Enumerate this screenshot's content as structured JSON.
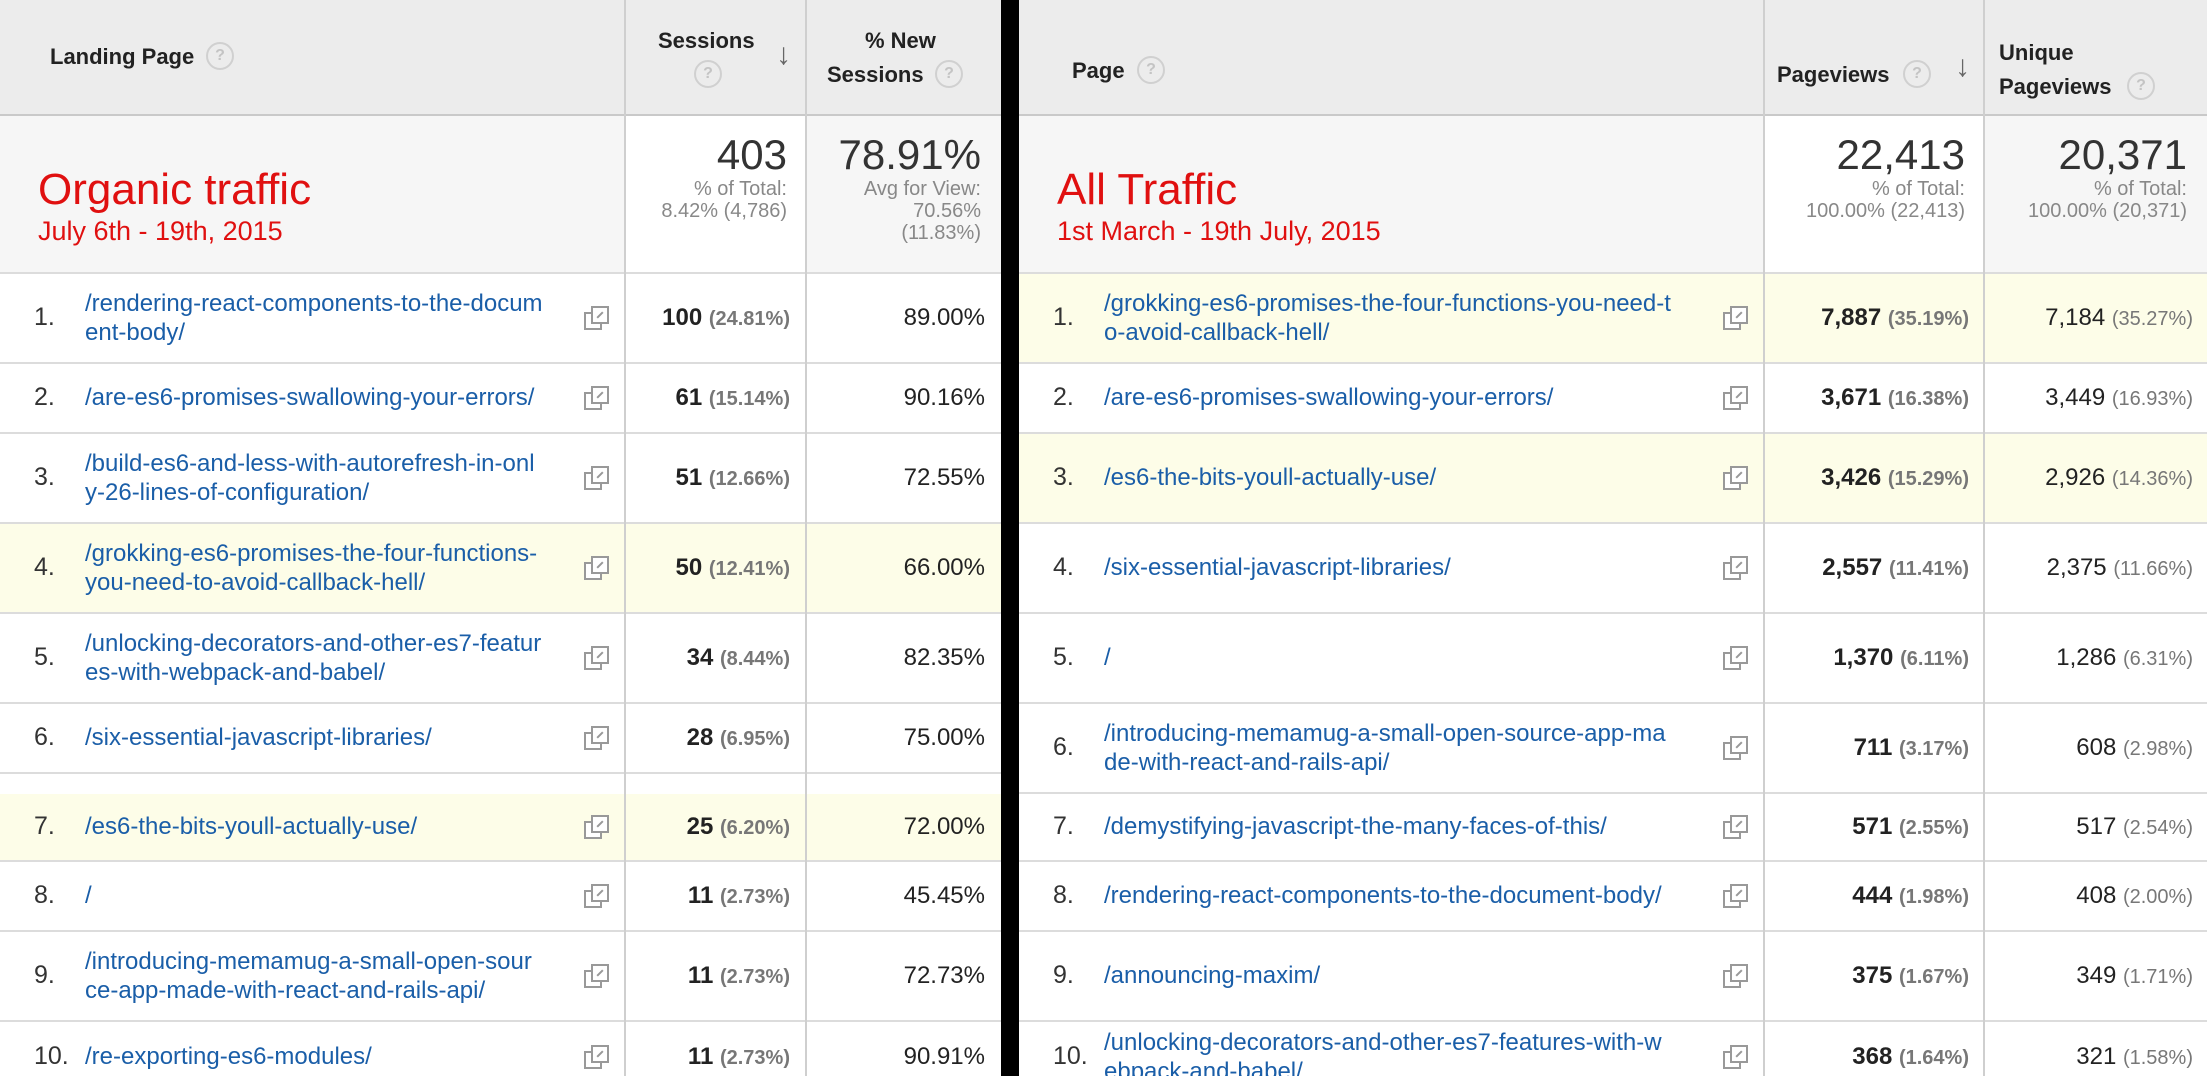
{
  "left": {
    "headers": {
      "landing_page": "Landing Page",
      "sessions": "Sessions",
      "new_sessions_line1": "% New",
      "new_sessions_line2": "Sessions",
      "help": "?",
      "sort_arrow": "↓"
    },
    "summary": {
      "title": "Organic traffic",
      "subtitle": "July 6th - 19th, 2015",
      "sessions_total": "403",
      "sessions_note1": "% of Total:",
      "sessions_note2": "8.42% (4,786)",
      "new_total": "78.91%",
      "new_note1": "Avg for View:",
      "new_note2": "70.56%",
      "new_note3": "(11.83%)"
    },
    "rows": [
      {
        "n": "1.",
        "line1": "/rendering-react-components-to-the-docum",
        "line2": "ent-body/",
        "sessions": "100",
        "pct": "(24.81%)",
        "new": "89.00%",
        "hl": false
      },
      {
        "n": "2.",
        "line1": "/are-es6-promises-swallowing-your-errors/",
        "line2": "",
        "sessions": "61",
        "pct": "(15.14%)",
        "new": "90.16%",
        "hl": false
      },
      {
        "n": "3.",
        "line1": "/build-es6-and-less-with-autorefresh-in-onl",
        "line2": "y-26-lines-of-configuration/",
        "sessions": "51",
        "pct": "(12.66%)",
        "new": "72.55%",
        "hl": false
      },
      {
        "n": "4.",
        "line1": "/grokking-es6-promises-the-four-functions-",
        "line2": "you-need-to-avoid-callback-hell/",
        "sessions": "50",
        "pct": "(12.41%)",
        "new": "66.00%",
        "hl": true
      },
      {
        "n": "5.",
        "line1": "/unlocking-decorators-and-other-es7-featur",
        "line2": "es-with-webpack-and-babel/",
        "sessions": "34",
        "pct": "(8.44%)",
        "new": "82.35%",
        "hl": false
      },
      {
        "n": "6.",
        "line1": "/six-essential-javascript-libraries/",
        "line2": "",
        "sessions": "28",
        "pct": "(6.95%)",
        "new": "75.00%",
        "hl": false
      },
      {
        "n": "7.",
        "line1": "/es6-the-bits-youll-actually-use/",
        "line2": "",
        "sessions": "25",
        "pct": "(6.20%)",
        "new": "72.00%",
        "hl": true
      },
      {
        "n": "8.",
        "line1": "/",
        "line2": "",
        "sessions": "11",
        "pct": "(2.73%)",
        "new": "45.45%",
        "hl": false
      },
      {
        "n": "9.",
        "line1": "/introducing-memamug-a-small-open-sour",
        "line2": "ce-app-made-with-react-and-rails-api/",
        "sessions": "11",
        "pct": "(2.73%)",
        "new": "72.73%",
        "hl": false
      },
      {
        "n": "10.",
        "line1": "/re-exporting-es6-modules/",
        "line2": "",
        "sessions": "11",
        "pct": "(2.73%)",
        "new": "90.91%",
        "hl": false
      }
    ]
  },
  "right": {
    "headers": {
      "page": "Page",
      "pageviews": "Pageviews",
      "unique_line1": "Unique",
      "unique_line2": "Pageviews",
      "help": "?",
      "sort_arrow": "↓"
    },
    "summary": {
      "title": "All Traffic",
      "subtitle": "1st March - 19th July, 2015",
      "pageviews_total": "22,413",
      "pageviews_note1": "% of Total:",
      "pageviews_note2": "100.00% (22,413)",
      "unique_total": "20,371",
      "unique_note1": "% of Total:",
      "unique_note2": "100.00% (20,371)"
    },
    "rows": [
      {
        "n": "1.",
        "line1": "/grokking-es6-promises-the-four-functions-you-need-t",
        "line2": "o-avoid-callback-hell/",
        "pv": "7,887",
        "pvpct": "(35.19%)",
        "upv": "7,184",
        "upvpct": "(35.27%)",
        "hl": true
      },
      {
        "n": "2.",
        "line1": "/are-es6-promises-swallowing-your-errors/",
        "line2": "",
        "pv": "3,671",
        "pvpct": "(16.38%)",
        "upv": "3,449",
        "upvpct": "(16.93%)",
        "hl": false
      },
      {
        "n": "3.",
        "line1": "/es6-the-bits-youll-actually-use/",
        "line2": "",
        "pv": "3,426",
        "pvpct": "(15.29%)",
        "upv": "2,926",
        "upvpct": "(14.36%)",
        "hl": true
      },
      {
        "n": "4.",
        "line1": "/six-essential-javascript-libraries/",
        "line2": "",
        "pv": "2,557",
        "pvpct": "(11.41%)",
        "upv": "2,375",
        "upvpct": "(11.66%)",
        "hl": false
      },
      {
        "n": "5.",
        "line1": "/",
        "line2": "",
        "pv": "1,370",
        "pvpct": "(6.11%)",
        "upv": "1,286",
        "upvpct": "(6.31%)",
        "hl": false
      },
      {
        "n": "6.",
        "line1": "/introducing-memamug-a-small-open-source-app-ma",
        "line2": "de-with-react-and-rails-api/",
        "pv": "711",
        "pvpct": "(3.17%)",
        "upv": "608",
        "upvpct": "(2.98%)",
        "hl": false
      },
      {
        "n": "7.",
        "line1": "/demystifying-javascript-the-many-faces-of-this/",
        "line2": "",
        "pv": "571",
        "pvpct": "(2.55%)",
        "upv": "517",
        "upvpct": "(2.54%)",
        "hl": false
      },
      {
        "n": "8.",
        "line1": "/rendering-react-components-to-the-document-body/",
        "line2": "",
        "pv": "444",
        "pvpct": "(1.98%)",
        "upv": "408",
        "upvpct": "(2.00%)",
        "hl": false
      },
      {
        "n": "9.",
        "line1": "/announcing-maxim/",
        "line2": "",
        "pv": "375",
        "pvpct": "(1.67%)",
        "upv": "349",
        "upvpct": "(1.71%)",
        "hl": false
      },
      {
        "n": "10.",
        "line1": "/unlocking-decorators-and-other-es7-features-with-w",
        "line2": "ebpack-and-babel/",
        "pv": "368",
        "pvpct": "(1.64%)",
        "upv": "321",
        "upvpct": "(1.58%)",
        "hl": false
      }
    ]
  }
}
